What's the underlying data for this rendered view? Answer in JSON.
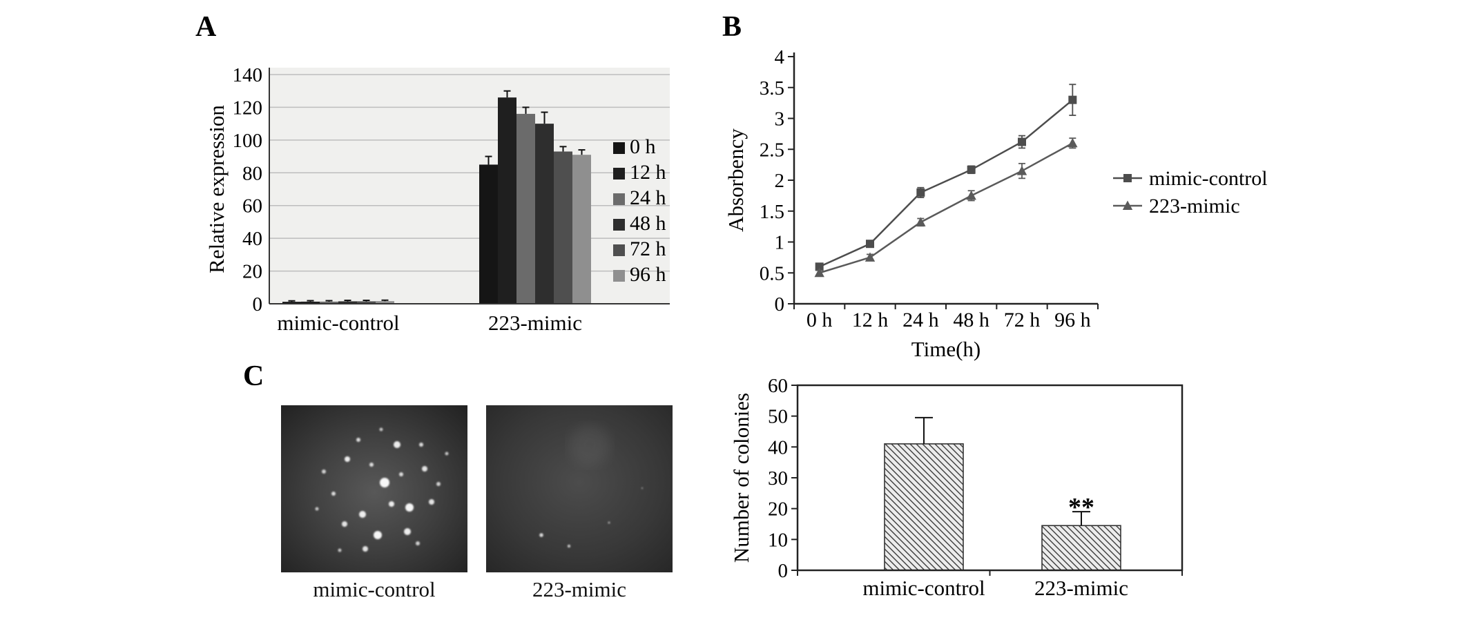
{
  "panels": {
    "A": {
      "label": "A"
    },
    "B": {
      "label": "B"
    },
    "C": {
      "label": "C"
    }
  },
  "chart_data": [
    {
      "panel": "A",
      "type": "bar",
      "title": "",
      "ylabel": "Relative expression",
      "ylim": [
        0,
        140
      ],
      "yticks": [
        0,
        20,
        40,
        60,
        80,
        100,
        120,
        140
      ],
      "grid": true,
      "plot_background": "#f0f0ee",
      "categories": [
        "mimic-control",
        "223-mimic"
      ],
      "legend_position": "right",
      "series": [
        {
          "name": "0 h",
          "color": "#151515",
          "values": [
            1.2,
            85
          ],
          "errors": [
            0.6,
            5
          ]
        },
        {
          "name": "12 h",
          "color": "#1f1f1f",
          "values": [
            1.3,
            126
          ],
          "errors": [
            0.6,
            4
          ]
        },
        {
          "name": "24 h",
          "color": "#6b6b6b",
          "values": [
            1.3,
            116
          ],
          "errors": [
            0.6,
            4
          ]
        },
        {
          "name": "48 h",
          "color": "#2e2e2e",
          "values": [
            1.5,
            110
          ],
          "errors": [
            0.6,
            7
          ]
        },
        {
          "name": "72 h",
          "color": "#4f4f4f",
          "values": [
            1.5,
            93
          ],
          "errors": [
            0.6,
            3
          ]
        },
        {
          "name": "96 h",
          "color": "#8f8f8f",
          "values": [
            1.6,
            91
          ],
          "errors": [
            0.6,
            3
          ]
        }
      ]
    },
    {
      "panel": "B",
      "type": "line",
      "title": "",
      "ylabel": "Absorbency",
      "xlabel": "Time(h)",
      "ylim": [
        0,
        4
      ],
      "yticks": [
        0,
        0.5,
        1,
        1.5,
        2,
        2.5,
        3,
        3.5,
        4
      ],
      "categories": [
        "0 h",
        "12 h",
        "24 h",
        "48 h",
        "72 h",
        "96 h"
      ],
      "legend_position": "right",
      "series": [
        {
          "name": "mimic-control",
          "marker": "square",
          "color": "#4d4d4d",
          "values": [
            0.6,
            0.97,
            1.8,
            2.17,
            2.62,
            3.3
          ],
          "errors": [
            0.05,
            0.05,
            0.08,
            0.06,
            0.1,
            0.25
          ]
        },
        {
          "name": "223-mimic",
          "marker": "triangle",
          "color": "#5a5a5a",
          "values": [
            0.5,
            0.75,
            1.32,
            1.75,
            2.15,
            2.6
          ],
          "errors": [
            0.04,
            0.05,
            0.06,
            0.08,
            0.12,
            0.08
          ]
        }
      ]
    },
    {
      "panel": "C",
      "type": "bar",
      "title": "",
      "ylabel": "Number of colonies",
      "ylim": [
        0,
        60
      ],
      "yticks": [
        0,
        10,
        20,
        30,
        40,
        50,
        60
      ],
      "categories": [
        "mimic-control",
        "223-mimic"
      ],
      "values": [
        41,
        14.5
      ],
      "errors": [
        8.5,
        4.5
      ],
      "bar_style": "diagonal-hatch",
      "annotations": [
        {
          "category_index": 1,
          "text": "**"
        }
      ]
    }
  ],
  "panelC_images": [
    {
      "label": "mimic-control"
    },
    {
      "label": "223-mimic"
    }
  ]
}
